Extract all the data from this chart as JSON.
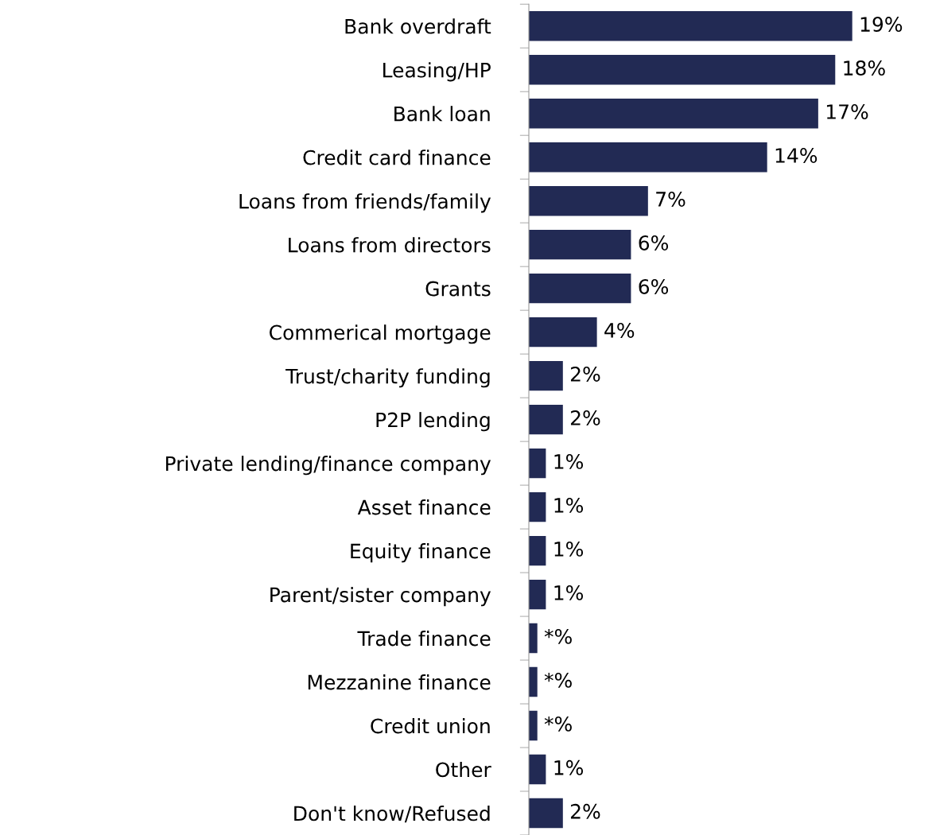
{
  "chart_data": {
    "type": "bar",
    "orientation": "horizontal",
    "color": "#222a54",
    "categories": [
      "Bank overdraft",
      "Leasing/HP",
      "Bank loan",
      "Credit card finance",
      "Loans from friends/family",
      "Loans from directors",
      "Grants",
      "Commerical mortgage",
      "Trust/charity funding",
      "P2P lending",
      "Private lending/finance company",
      "Asset finance",
      "Equity finance",
      "Parent/sister company",
      "Trade finance",
      "Mezzanine finance",
      "Credit union",
      "Other",
      "Don't know/Refused"
    ],
    "values": [
      19,
      18,
      17,
      14,
      7,
      6,
      6,
      4,
      2,
      2,
      1,
      1,
      1,
      1,
      0.5,
      0.5,
      0.5,
      1,
      2
    ],
    "value_labels": [
      "19%",
      "18%",
      "17%",
      "14%",
      "7%",
      "6%",
      "6%",
      "4%",
      "2%",
      "2%",
      "1%",
      "1%",
      "1%",
      "1%",
      "*%",
      "*%",
      "*%",
      "1%",
      "2%"
    ],
    "grid": false,
    "legend": false
  }
}
